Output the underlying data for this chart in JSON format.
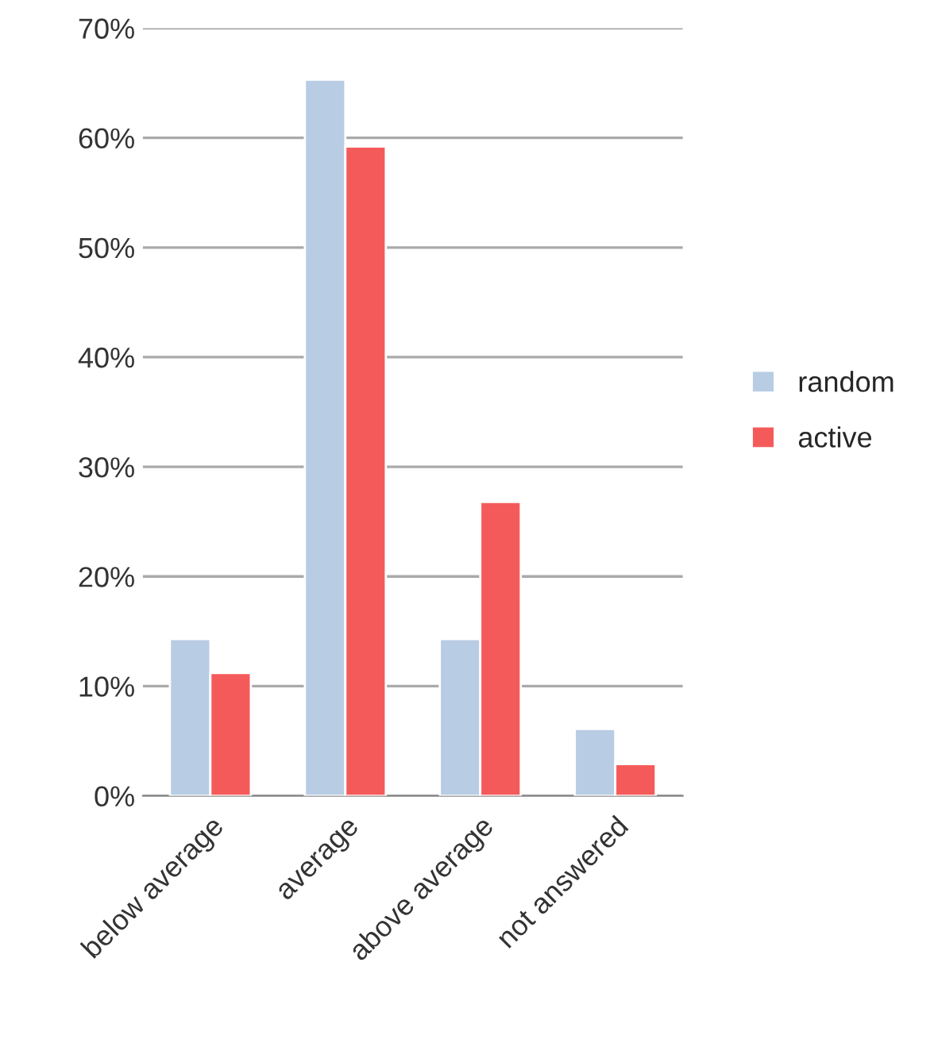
{
  "chart_data": {
    "type": "bar",
    "categories": [
      "below average",
      "average",
      "above average",
      "not answered"
    ],
    "series": [
      {
        "name": "random",
        "color": "#b8cce4",
        "values": [
          14.3,
          65.3,
          14.3,
          6.1
        ]
      },
      {
        "name": "active",
        "color": "#f55a5a",
        "values": [
          11.2,
          59.2,
          26.8,
          2.9
        ]
      }
    ],
    "ylim": [
      0,
      70
    ],
    "yticks": [
      {
        "value": 0,
        "label": "0%"
      },
      {
        "value": 10,
        "label": "10%"
      },
      {
        "value": 20,
        "label": "20%"
      },
      {
        "value": 30,
        "label": "30%"
      },
      {
        "value": 40,
        "label": "40%"
      },
      {
        "value": 50,
        "label": "50%"
      },
      {
        "value": 60,
        "label": "60%"
      },
      {
        "value": 70,
        "label": "70%"
      }
    ],
    "grid": "y",
    "legend": "right"
  }
}
